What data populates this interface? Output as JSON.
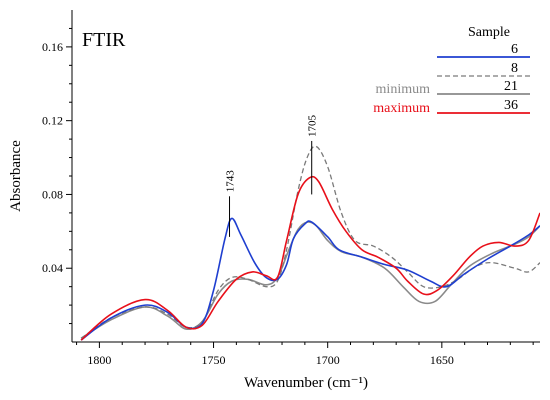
{
  "chart_data": {
    "type": "line",
    "title": "FTIR",
    "xlabel": "Wavenumber (cm⁻¹)",
    "ylabel": "Absorbance",
    "x_reversed": true,
    "xlim": [
      1812,
      1607
    ],
    "ylim": [
      0,
      0.18
    ],
    "x_ticks": [
      1800,
      1750,
      1700,
      1650
    ],
    "y_ticks": [
      0.04,
      0.08,
      0.12,
      0.16
    ],
    "y_tick_labels": [
      "0.04",
      "0.08",
      "0.12",
      "0.16"
    ],
    "grid": false,
    "legend": {
      "title": "Sample",
      "position": "top-right",
      "entries": [
        {
          "label": "6",
          "color": "#1f3fd0",
          "dash": "solid",
          "note": ""
        },
        {
          "label": "8",
          "color": "#7a7a7a",
          "dash": "dashed",
          "note": ""
        },
        {
          "label": "21",
          "color": "#8a8a8a",
          "dash": "solid",
          "note": "minimum",
          "note_color": "#8a8a8a"
        },
        {
          "label": "36",
          "color": "#e8101a",
          "dash": "solid",
          "note": "maximum",
          "note_color": "#e8101a"
        }
      ]
    },
    "annotations": [
      {
        "label": "1743",
        "x": 1743,
        "y_from": 0.057,
        "y_to": 0.079
      },
      {
        "label": "1705",
        "x": 1707,
        "y_from": 0.08,
        "y_to": 0.109
      }
    ],
    "series": [
      {
        "name": "6",
        "color": "#1f3fd0",
        "dash": "solid",
        "points": [
          [
            1808,
            0.001
          ],
          [
            1795,
            0.013
          ],
          [
            1780,
            0.02
          ],
          [
            1770,
            0.016
          ],
          [
            1762,
            0.008
          ],
          [
            1755,
            0.01
          ],
          [
            1750,
            0.028
          ],
          [
            1745,
            0.056
          ],
          [
            1742,
            0.067
          ],
          [
            1738,
            0.058
          ],
          [
            1732,
            0.043
          ],
          [
            1727,
            0.035
          ],
          [
            1722,
            0.034
          ],
          [
            1718,
            0.042
          ],
          [
            1715,
            0.056
          ],
          [
            1710,
            0.064
          ],
          [
            1707,
            0.065
          ],
          [
            1700,
            0.057
          ],
          [
            1695,
            0.05
          ],
          [
            1685,
            0.046
          ],
          [
            1675,
            0.042
          ],
          [
            1665,
            0.039
          ],
          [
            1655,
            0.033
          ],
          [
            1648,
            0.03
          ],
          [
            1640,
            0.037
          ],
          [
            1630,
            0.045
          ],
          [
            1620,
            0.052
          ],
          [
            1612,
            0.058
          ],
          [
            1607,
            0.063
          ]
        ]
      },
      {
        "name": "8",
        "color": "#7a7a7a",
        "dash": "dashed",
        "points": [
          [
            1808,
            0.002
          ],
          [
            1795,
            0.013
          ],
          [
            1780,
            0.019
          ],
          [
            1770,
            0.015
          ],
          [
            1762,
            0.008
          ],
          [
            1755,
            0.011
          ],
          [
            1748,
            0.028
          ],
          [
            1742,
            0.035
          ],
          [
            1735,
            0.034
          ],
          [
            1727,
            0.03
          ],
          [
            1722,
            0.033
          ],
          [
            1718,
            0.05
          ],
          [
            1713,
            0.082
          ],
          [
            1709,
            0.1
          ],
          [
            1705,
            0.106
          ],
          [
            1700,
            0.095
          ],
          [
            1694,
            0.07
          ],
          [
            1688,
            0.055
          ],
          [
            1680,
            0.052
          ],
          [
            1672,
            0.046
          ],
          [
            1665,
            0.038
          ],
          [
            1658,
            0.03
          ],
          [
            1650,
            0.03
          ],
          [
            1643,
            0.034
          ],
          [
            1635,
            0.041
          ],
          [
            1628,
            0.043
          ],
          [
            1618,
            0.04
          ],
          [
            1612,
            0.038
          ],
          [
            1607,
            0.043
          ]
        ]
      },
      {
        "name": "21",
        "color": "#8a8a8a",
        "dash": "solid",
        "points": [
          [
            1808,
            0.002
          ],
          [
            1795,
            0.012
          ],
          [
            1780,
            0.019
          ],
          [
            1770,
            0.014
          ],
          [
            1762,
            0.007
          ],
          [
            1755,
            0.011
          ],
          [
            1748,
            0.026
          ],
          [
            1742,
            0.033
          ],
          [
            1735,
            0.034
          ],
          [
            1727,
            0.031
          ],
          [
            1722,
            0.035
          ],
          [
            1717,
            0.05
          ],
          [
            1713,
            0.061
          ],
          [
            1709,
            0.065
          ],
          [
            1705,
            0.063
          ],
          [
            1700,
            0.055
          ],
          [
            1694,
            0.049
          ],
          [
            1685,
            0.046
          ],
          [
            1675,
            0.04
          ],
          [
            1667,
            0.03
          ],
          [
            1660,
            0.022
          ],
          [
            1653,
            0.022
          ],
          [
            1646,
            0.031
          ],
          [
            1638,
            0.041
          ],
          [
            1628,
            0.048
          ],
          [
            1618,
            0.053
          ],
          [
            1612,
            0.057
          ],
          [
            1607,
            0.063
          ]
        ]
      },
      {
        "name": "36",
        "color": "#e8101a",
        "dash": "solid",
        "points": [
          [
            1808,
            0.001
          ],
          [
            1795,
            0.015
          ],
          [
            1780,
            0.023
          ],
          [
            1770,
            0.017
          ],
          [
            1762,
            0.008
          ],
          [
            1755,
            0.009
          ],
          [
            1748,
            0.022
          ],
          [
            1740,
            0.034
          ],
          [
            1733,
            0.038
          ],
          [
            1727,
            0.036
          ],
          [
            1722,
            0.035
          ],
          [
            1718,
            0.055
          ],
          [
            1713,
            0.08
          ],
          [
            1708,
            0.089
          ],
          [
            1704,
            0.087
          ],
          [
            1698,
            0.072
          ],
          [
            1692,
            0.06
          ],
          [
            1685,
            0.05
          ],
          [
            1678,
            0.046
          ],
          [
            1670,
            0.04
          ],
          [
            1665,
            0.033
          ],
          [
            1658,
            0.026
          ],
          [
            1652,
            0.028
          ],
          [
            1645,
            0.036
          ],
          [
            1638,
            0.046
          ],
          [
            1632,
            0.052
          ],
          [
            1625,
            0.054
          ],
          [
            1618,
            0.052
          ],
          [
            1612,
            0.055
          ],
          [
            1607,
            0.07
          ]
        ]
      }
    ]
  }
}
